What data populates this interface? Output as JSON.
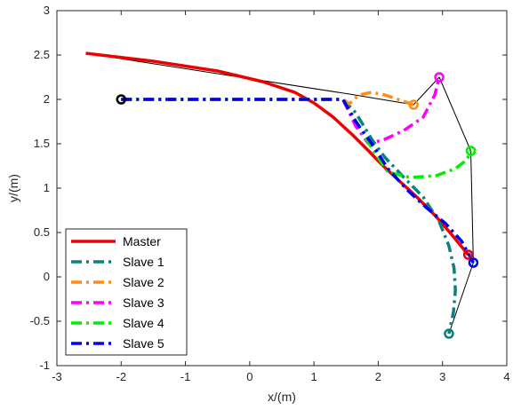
{
  "chart_data": {
    "type": "line",
    "title": "",
    "xlabel": "x/(m)",
    "ylabel": "y/(m)",
    "xlim": [
      -3,
      4
    ],
    "ylim": [
      -1,
      3
    ],
    "xticks": [
      -3,
      -2,
      -1,
      0,
      1,
      2,
      3,
      4
    ],
    "yticks": [
      -1,
      -0.5,
      0,
      0.5,
      1,
      1.5,
      2,
      2.5,
      3
    ],
    "grid": false,
    "legend_position": "bottom-left",
    "series": [
      {
        "name": "Master",
        "color": "#ee0000",
        "style": "solid",
        "x": [
          -2.55,
          -1.5,
          -0.5,
          0.2,
          0.7,
          1.0,
          1.3,
          1.6,
          1.85,
          2.05,
          2.3,
          2.6,
          2.9,
          3.15,
          3.4
        ],
        "y": [
          2.52,
          2.43,
          2.32,
          2.2,
          2.08,
          1.96,
          1.8,
          1.6,
          1.42,
          1.27,
          1.1,
          0.9,
          0.68,
          0.47,
          0.25
        ],
        "marker_end": "circle"
      },
      {
        "name": "Slave 1",
        "color": "#0d7f7f",
        "style": "dash-dot",
        "x": [
          -2.0,
          -1.0,
          0.0,
          1.0,
          1.45,
          1.65,
          1.9,
          2.1,
          2.4,
          2.7,
          2.95,
          3.1,
          3.18,
          3.2,
          3.17,
          3.1
        ],
        "y": [
          2.0,
          2.0,
          2.0,
          2.0,
          2.0,
          1.85,
          1.55,
          1.35,
          1.12,
          0.9,
          0.62,
          0.35,
          0.1,
          -0.15,
          -0.4,
          -0.64
        ],
        "marker_end": "circle"
      },
      {
        "name": "Slave 2",
        "color": "#ff8c1a",
        "style": "dash-dot",
        "x": [
          -2.0,
          0.0,
          1.45,
          1.55,
          1.7,
          1.9,
          2.1,
          2.35,
          2.55
        ],
        "y": [
          2.0,
          2.0,
          2.0,
          1.95,
          2.05,
          2.08,
          2.05,
          1.99,
          1.94
        ],
        "marker_end": "circle"
      },
      {
        "name": "Slave 3",
        "color": "#ff00ff",
        "style": "dash-dot",
        "x": [
          -2.0,
          0.0,
          1.45,
          1.65,
          1.85,
          2.1,
          2.4,
          2.7,
          2.88,
          2.95
        ],
        "y": [
          2.0,
          2.0,
          2.0,
          1.7,
          1.5,
          1.55,
          1.65,
          1.8,
          2.05,
          2.25
        ],
        "marker_end": "circle"
      },
      {
        "name": "Slave 4",
        "color": "#00ee00",
        "style": "dash-dot",
        "x": [
          -2.0,
          0.0,
          1.45,
          1.7,
          1.9,
          2.15,
          2.5,
          2.9,
          3.2,
          3.38,
          3.44
        ],
        "y": [
          2.0,
          2.0,
          2.0,
          1.7,
          1.45,
          1.18,
          1.12,
          1.14,
          1.22,
          1.32,
          1.42
        ],
        "marker_end": "circle"
      },
      {
        "name": "Slave 5",
        "color": "#0000ee",
        "style": "dash-dot",
        "x": [
          -2.0,
          -1.0,
          0.0,
          1.0,
          1.45,
          1.65,
          1.9,
          2.15,
          2.45,
          2.75,
          3.05,
          3.3,
          3.48
        ],
        "y": [
          2.0,
          2.0,
          2.0,
          2.0,
          2.0,
          1.75,
          1.5,
          1.22,
          0.98,
          0.78,
          0.6,
          0.4,
          0.16
        ],
        "marker_end": "circle"
      }
    ],
    "start_marker": {
      "x": -2.0,
      "y": 2.0,
      "color": "#000000"
    },
    "formation_lines": {
      "color": "#000000",
      "segments": [
        [
          [
            -2.55,
            2.52
          ],
          [
            1.55,
            2.06
          ]
        ],
        [
          [
            1.55,
            2.06
          ],
          [
            2.55,
            1.94
          ]
        ],
        [
          [
            2.55,
            1.94
          ],
          [
            2.95,
            2.25
          ]
        ],
        [
          [
            2.95,
            2.25
          ],
          [
            3.44,
            1.42
          ]
        ],
        [
          [
            3.44,
            1.42
          ],
          [
            3.48,
            0.16
          ]
        ],
        [
          [
            3.48,
            0.16
          ],
          [
            3.1,
            -0.64
          ]
        ]
      ]
    }
  }
}
